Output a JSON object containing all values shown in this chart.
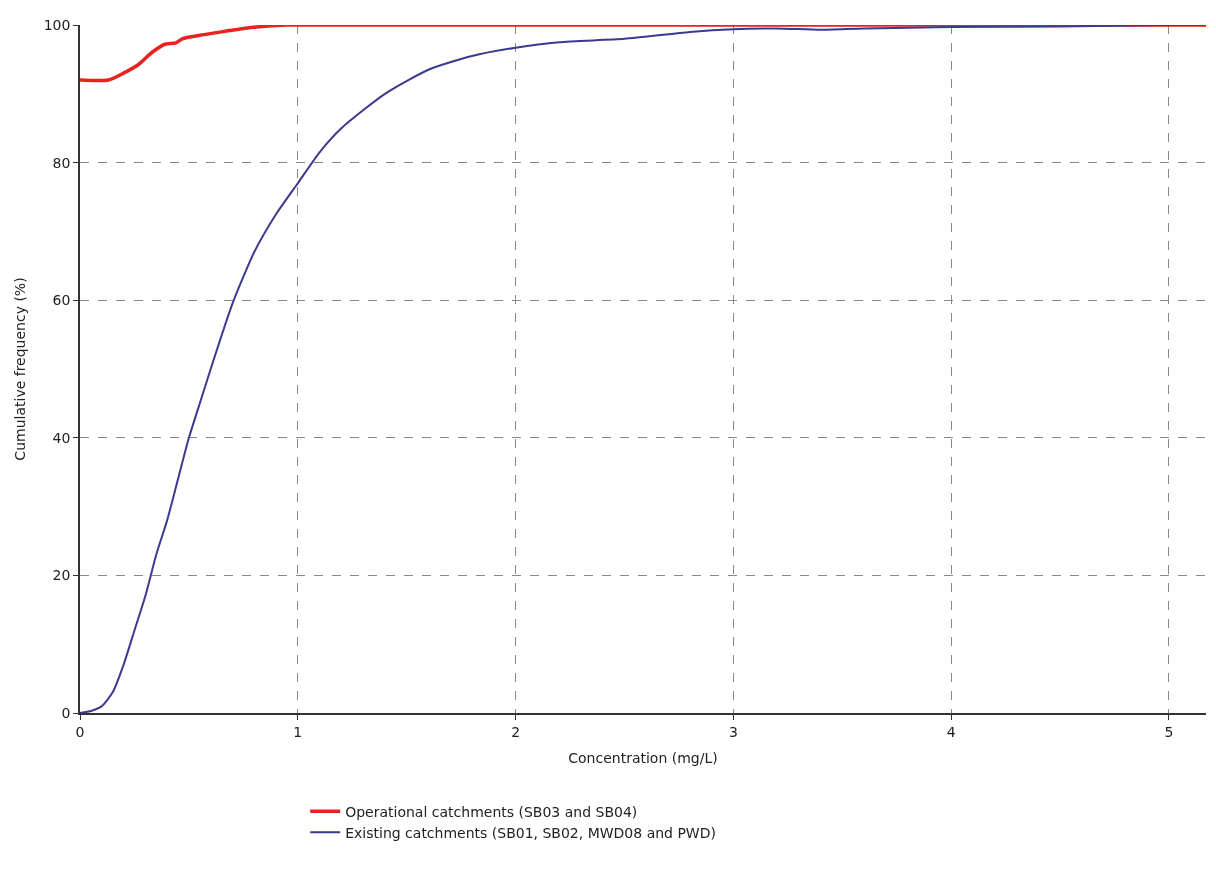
{
  "chart_data": {
    "type": "line",
    "xlabel": "Concentration (mg/L)",
    "ylabel": "Cumulative frequency (%)",
    "xlim": [
      0,
      5.17
    ],
    "xticks": [
      0,
      1,
      2,
      3,
      4,
      5
    ],
    "ylim": [
      0,
      100
    ],
    "yticks": [
      0,
      20,
      40,
      60,
      80,
      100
    ],
    "grid": true,
    "legend": "bottom",
    "line_style": "solid",
    "marker": "none",
    "series": [
      {
        "name": "Operational catchments (SB03 and SB04)",
        "color": "#e8231f",
        "x": [
          0,
          0.13,
          0.2,
          0.27,
          0.33,
          0.39,
          0.44,
          0.47,
          0.55,
          0.65,
          0.81,
          0.95,
          1.0,
          2,
          3,
          4,
          5,
          5.17
        ],
        "values": [
          92,
          92,
          93,
          94.3,
          96,
          97.2,
          97.4,
          98,
          98.5,
          99,
          99.7,
          100,
          100,
          100,
          100,
          100,
          100,
          100
        ]
      },
      {
        "name": "Existing catchments (SB01, SB02, MWD08 and PWD)",
        "color": "#3b3a8f",
        "x": [
          0,
          0.05,
          0.1,
          0.15,
          0.2,
          0.25,
          0.3,
          0.35,
          0.4,
          0.45,
          0.5,
          0.55,
          0.6,
          0.7,
          0.8,
          0.9,
          1.0,
          1.1,
          1.2,
          1.4,
          1.6,
          1.8,
          2.0,
          2.2,
          2.5,
          2.8,
          3.0,
          3.2,
          3.4,
          3.6,
          4.0,
          4.5,
          5.0,
          5.17
        ],
        "values": [
          0,
          0.3,
          1,
          3,
          7,
          12,
          17,
          23,
          28,
          34,
          40,
          45,
          50,
          59.5,
          67,
          72.5,
          77,
          81.5,
          85,
          90,
          93.5,
          95.5,
          96.7,
          97.5,
          98,
          99,
          99.4,
          99.5,
          99.3,
          99.5,
          99.7,
          99.8,
          100,
          100
        ]
      }
    ]
  }
}
